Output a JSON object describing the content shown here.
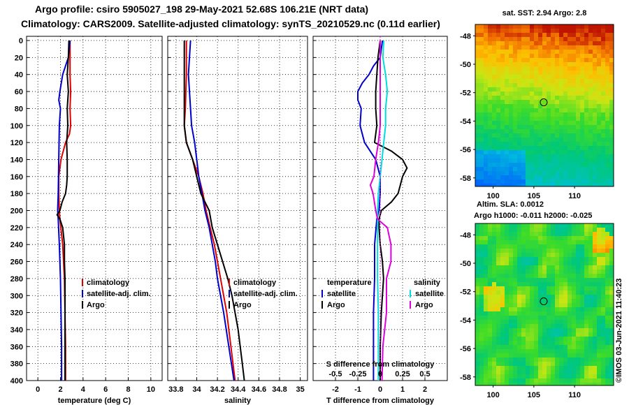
{
  "header": {
    "line1": "Argo profile: csiro 5905027_198 29-May-2021 52.68S 106.21E (NRT data)",
    "line2": "Climatology: CARS2009. Satellite-adjusted climatology: synTS_20210529.nc (0.11d earlier)"
  },
  "colors": {
    "climatology": "#dd0000",
    "satellite": "#0000cc",
    "argo": "#000000",
    "sat_salinity": "#00dddd",
    "clim_salinity": "#dd00dd"
  },
  "chart_data": [
    {
      "type": "line",
      "id": "temperature",
      "xlabel": "temperature (deg C)",
      "xlim": [
        -1,
        11
      ],
      "xticks": [
        "0",
        "2",
        "4",
        "6",
        "8",
        "10"
      ],
      "ylim": [
        0,
        400
      ],
      "yticks": [
        "0",
        "20",
        "40",
        "60",
        "80",
        "100",
        "120",
        "140",
        "160",
        "180",
        "200",
        "220",
        "240",
        "260",
        "280",
        "300",
        "320",
        "340",
        "360",
        "380",
        "400"
      ],
      "grid": true,
      "legend": [
        "climatology",
        "satellite-adj. clim.",
        "Argo"
      ],
      "series": [
        {
          "name": "climatology",
          "depth": [
            0,
            20,
            40,
            60,
            80,
            100,
            110,
            120,
            140,
            160,
            180,
            200,
            210,
            240,
            280,
            320,
            360,
            400
          ],
          "values": [
            2.85,
            2.85,
            2.85,
            2.9,
            2.85,
            2.9,
            2.8,
            2.45,
            2.05,
            1.85,
            1.85,
            1.9,
            1.95,
            2.2,
            2.35,
            2.4,
            2.45,
            2.45
          ]
        },
        {
          "name": "satellite-adj. clim.",
          "depth": [
            0,
            20,
            40,
            60,
            70,
            80,
            100,
            140,
            180,
            200,
            210,
            240,
            280,
            320,
            360,
            400
          ],
          "values": [
            2.85,
            2.7,
            2.2,
            1.95,
            1.85,
            2.0,
            1.9,
            1.85,
            1.8,
            1.75,
            1.8,
            1.9,
            2.0,
            2.05,
            2.1,
            2.1
          ]
        },
        {
          "name": "Argo",
          "depth": [
            0,
            20,
            40,
            60,
            80,
            100,
            120,
            140,
            160,
            170,
            180,
            190,
            200,
            205,
            210,
            220,
            240,
            260,
            280,
            320,
            360,
            400
          ],
          "values": [
            2.75,
            2.7,
            2.6,
            2.7,
            2.6,
            2.65,
            2.55,
            2.6,
            2.6,
            2.55,
            2.45,
            2.15,
            1.95,
            1.7,
            1.95,
            2.2,
            2.35,
            2.35,
            2.4,
            2.4,
            2.4,
            2.4
          ]
        }
      ]
    },
    {
      "type": "line",
      "id": "salinity",
      "xlabel": "salinity",
      "xlim": [
        33.72,
        35.07
      ],
      "xticks": [
        "33.8",
        "34",
        "34.2",
        "34.4",
        "34.6",
        "34.8",
        "35"
      ],
      "ylim": [
        0,
        400
      ],
      "grid": true,
      "legend": [
        "climatology",
        "satellite-adj. clim.",
        "Argo"
      ],
      "series": [
        {
          "name": "climatology",
          "depth": [
            0,
            40,
            80,
            100,
            120,
            140,
            160,
            180,
            200,
            220,
            240,
            280,
            320,
            360,
            400
          ],
          "values": [
            33.9,
            33.9,
            33.89,
            33.88,
            33.9,
            33.96,
            34.02,
            34.06,
            34.09,
            34.13,
            34.17,
            34.23,
            34.29,
            34.33,
            34.37
          ]
        },
        {
          "name": "satellite-adj. clim.",
          "depth": [
            0,
            20,
            40,
            60,
            80,
            100,
            120,
            140,
            160,
            180,
            200,
            220,
            240,
            260,
            280,
            320,
            360,
            400
          ],
          "values": [
            33.94,
            33.93,
            33.92,
            33.93,
            33.94,
            33.95,
            33.98,
            34.0,
            34.02,
            34.05,
            34.08,
            34.12,
            34.15,
            34.18,
            34.2,
            34.26,
            34.31,
            34.36
          ]
        },
        {
          "name": "Argo",
          "depth": [
            0,
            20,
            40,
            60,
            80,
            100,
            120,
            140,
            160,
            180,
            190,
            200,
            220,
            240,
            260,
            280,
            300,
            320,
            340,
            360,
            380,
            400
          ],
          "values": [
            33.88,
            33.88,
            33.88,
            33.88,
            33.88,
            33.88,
            33.9,
            33.96,
            34.0,
            34.04,
            34.08,
            34.12,
            34.15,
            34.2,
            34.25,
            34.3,
            34.34,
            34.37,
            34.4,
            34.42,
            34.44,
            34.46
          ]
        }
      ]
    },
    {
      "type": "line",
      "id": "difference",
      "xlabel": "T difference from climatology",
      "xlabel2": "S difference from climatology",
      "xlim": [
        -3,
        3
      ],
      "xticks": [
        "-2",
        "-1",
        "0",
        "1",
        "2"
      ],
      "xticks_salinity": [
        "-0.5",
        "-0.25",
        "0",
        "0.25",
        "0.5"
      ],
      "ylim": [
        0,
        400
      ],
      "grid": true,
      "legend_temperature_title": "temperature",
      "legend_salinity_title": "salinity",
      "legend_temperature": [
        "satellite",
        "Argo"
      ],
      "legend_salinity": [
        "satellite",
        "Argo"
      ],
      "series": [
        {
          "name": "T satellite",
          "depth": [
            0,
            20,
            30,
            40,
            50,
            60,
            70,
            80,
            100,
            120,
            140,
            160,
            180,
            200,
            210,
            240,
            280,
            320,
            360,
            400
          ],
          "values": [
            0.1,
            0.0,
            -0.3,
            -0.5,
            -0.8,
            -1.0,
            -1.0,
            -0.85,
            -0.9,
            -0.7,
            -0.2,
            0.0,
            0.0,
            -0.05,
            -0.15,
            -0.25,
            -0.25,
            -0.3,
            -0.3,
            -0.3
          ]
        },
        {
          "name": "T Argo",
          "depth": [
            0,
            20,
            40,
            60,
            80,
            100,
            120,
            130,
            140,
            150,
            160,
            170,
            180,
            190,
            200,
            210,
            220,
            240,
            260,
            280,
            320,
            360,
            400
          ],
          "values": [
            0.0,
            -0.1,
            -0.15,
            -0.2,
            -0.2,
            -0.15,
            -0.25,
            0.5,
            1.0,
            1.2,
            1.0,
            0.9,
            0.8,
            0.5,
            0.05,
            -0.05,
            -0.05,
            0.0,
            0.1,
            0.15,
            0.05,
            0.0,
            0.0
          ]
        },
        {
          "name": "S satellite",
          "depth": [
            0,
            20,
            40,
            60,
            80,
            100,
            120,
            140,
            160,
            180,
            200,
            240,
            280,
            320,
            360,
            400
          ],
          "values": [
            0.04,
            0.03,
            0.06,
            0.08,
            0.06,
            0.06,
            0.04,
            0.02,
            0.0,
            -0.02,
            -0.03,
            -0.03,
            -0.03,
            -0.02,
            -0.02,
            -0.02
          ]
        },
        {
          "name": "S Argo",
          "depth": [
            0,
            40,
            80,
            100,
            120,
            140,
            160,
            170,
            180,
            200,
            210,
            220,
            240,
            260,
            280,
            320,
            360,
            400
          ],
          "values": [
            0.0,
            0.0,
            0.0,
            0.0,
            -0.02,
            -0.05,
            -0.07,
            -0.11,
            -0.08,
            -0.05,
            -0.03,
            0.08,
            0.12,
            0.12,
            0.07,
            0.07,
            0.03,
            0.02
          ]
        }
      ]
    }
  ],
  "maps": {
    "sst_title": "sat. SST: 2.94 Argo: 2.8",
    "sla_title1": "Altim. SLA: 0.0012",
    "sla_title2": "Argo h1000: -0.011 h2000: -0.025",
    "lat_ticks": [
      "-48",
      "-50",
      "-52",
      "-54",
      "-56",
      "-58"
    ],
    "lon_ticks": [
      "100",
      "105",
      "110"
    ],
    "lat_range": [
      -47.2,
      -58.6
    ],
    "lon_range": [
      97.8,
      114.8
    ],
    "argo_position": {
      "lat": -52.68,
      "lon": 106.21
    },
    "credit": "©IMOS 03-Jun-2021 11:40:23"
  }
}
